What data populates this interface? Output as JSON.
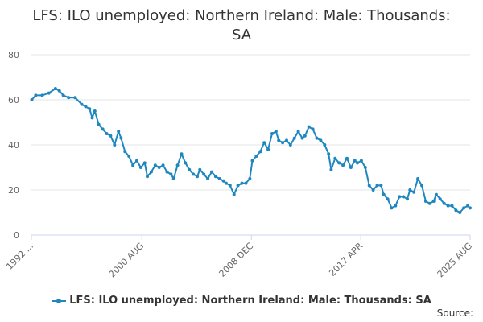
{
  "title_line1": "LFS: ILO unemployed: Northern Ireland: Male: Thousands:",
  "title_line2": "SA",
  "source_label": "Source:",
  "legend_label": "LFS: ILO unemployed: Northern Ireland: Male: Thousands: SA",
  "series_color": "#1f87bf",
  "chart_data": {
    "type": "line",
    "title": "LFS: ILO unemployed: Northern Ireland: Male: Thousands: SA",
    "xlabel": "",
    "ylabel": "",
    "ylim": [
      0,
      80
    ],
    "yticks": [
      0,
      20,
      40,
      60,
      80
    ],
    "xlim": [
      1992.17,
      2025.58
    ],
    "xticks": [
      {
        "x": 1992.17,
        "label": "1992 ..."
      },
      {
        "x": 2000.58,
        "label": "2000 AUG"
      },
      {
        "x": 2008.92,
        "label": "2008 DEC"
      },
      {
        "x": 2017.25,
        "label": "2017 APR"
      },
      {
        "x": 2025.58,
        "label": "2025 AUG"
      }
    ],
    "grid": "horizontal",
    "legend": "bottom",
    "series": [
      {
        "name": "LFS: ILO unemployed: Northern Ireland: Male: Thousands: SA",
        "x": [
          1992.2,
          1992.5,
          1993.0,
          1993.5,
          1994.0,
          1994.3,
          1994.6,
          1995.0,
          1995.5,
          1996.0,
          1996.3,
          1996.6,
          1996.8,
          1997.0,
          1997.3,
          1997.6,
          1997.9,
          1998.2,
          1998.5,
          1998.8,
          1999.0,
          1999.3,
          1999.6,
          1999.9,
          2000.2,
          2000.5,
          2000.8,
          2001.0,
          2001.3,
          2001.6,
          2001.9,
          2002.2,
          2002.5,
          2002.8,
          2003.0,
          2003.3,
          2003.6,
          2003.9,
          2004.2,
          2004.5,
          2004.8,
          2005.0,
          2005.3,
          2005.6,
          2005.9,
          2006.2,
          2006.5,
          2006.8,
          2007.0,
          2007.3,
          2007.6,
          2007.9,
          2008.2,
          2008.5,
          2008.8,
          2009.0,
          2009.3,
          2009.6,
          2009.9,
          2010.2,
          2010.5,
          2010.8,
          2011.0,
          2011.3,
          2011.6,
          2011.9,
          2012.2,
          2012.5,
          2012.8,
          2013.0,
          2013.3,
          2013.6,
          2013.9,
          2014.2,
          2014.5,
          2014.8,
          2015.0,
          2015.3,
          2015.6,
          2015.9,
          2016.2,
          2016.5,
          2016.8,
          2017.0,
          2017.3,
          2017.6,
          2017.9,
          2018.2,
          2018.5,
          2018.8,
          2019.0,
          2019.3,
          2019.6,
          2019.9,
          2020.2,
          2020.5,
          2020.8,
          2021.0,
          2021.3,
          2021.6,
          2021.9,
          2022.2,
          2022.5,
          2022.8,
          2023.0,
          2023.3,
          2023.6,
          2023.9,
          2024.2,
          2024.5,
          2024.8,
          2025.1,
          2025.4,
          2025.58
        ],
        "values": [
          60,
          62,
          62,
          63,
          65,
          64,
          62,
          61,
          61,
          58,
          57,
          56,
          52,
          55,
          49,
          47,
          45,
          44,
          40,
          46,
          43,
          37,
          35,
          31,
          33,
          30,
          32,
          26,
          28,
          31,
          30,
          31,
          28,
          27,
          25,
          31,
          36,
          32,
          29,
          27,
          26,
          29,
          27,
          25,
          28,
          26,
          25,
          24,
          23,
          22,
          18,
          22,
          23,
          23,
          25,
          33,
          35,
          37,
          41,
          38,
          45,
          46,
          42,
          41,
          42,
          40,
          43,
          46,
          43,
          44,
          48,
          47,
          43,
          42,
          40,
          36,
          29,
          34,
          32,
          31,
          34,
          30,
          33,
          32,
          33,
          30,
          22,
          20,
          22,
          22,
          18,
          16,
          12,
          13,
          17,
          17,
          16,
          20,
          19,
          25,
          22,
          15,
          14,
          15,
          18,
          16,
          14,
          13,
          13,
          11,
          10,
          12,
          13,
          12
        ]
      }
    ]
  }
}
